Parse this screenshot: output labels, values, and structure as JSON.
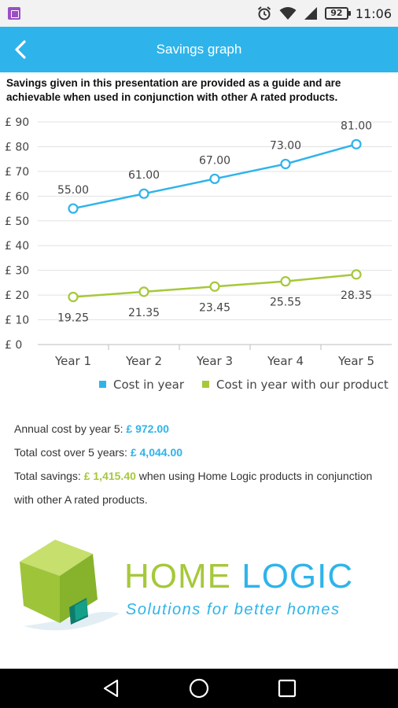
{
  "status_bar": {
    "time": "11:06",
    "battery": "92",
    "icons": [
      "app-notification-icon",
      "alarm-icon",
      "wifi-icon",
      "signal-icon",
      "battery-icon"
    ]
  },
  "app_bar": {
    "title": "Savings graph",
    "back_icon": "back-arrow-icon"
  },
  "disclaimer": "Savings given in this presentation are provided as a guide and are achievable when used in conjunction with other A rated products.",
  "chart_data": {
    "type": "line",
    "categories": [
      "Year 1",
      "Year 2",
      "Year 3",
      "Year 4",
      "Year 5"
    ],
    "series": [
      {
        "name": "Cost in year",
        "values": [
          55.0,
          61.0,
          67.0,
          73.0,
          81.0
        ],
        "labels": [
          "55.00",
          "61.00",
          "67.00",
          "73.00",
          "81.00"
        ],
        "color": "#2eb4ea"
      },
      {
        "name": "Cost in year with our product",
        "values": [
          19.25,
          21.35,
          23.45,
          25.55,
          28.35
        ],
        "labels": [
          "19.25",
          "21.35",
          "23.45",
          "25.55",
          "28.35"
        ],
        "color": "#a6c83a"
      }
    ],
    "y_ticks": [
      0,
      10,
      20,
      30,
      40,
      50,
      60,
      70,
      80,
      90
    ],
    "y_tick_labels": [
      "£ 0",
      "£ 10",
      "£ 20",
      "£ 30",
      "£ 40",
      "£ 50",
      "£ 60",
      "£ 70",
      "£ 80",
      "£ 90"
    ],
    "ylim": [
      0,
      90
    ],
    "grid": true,
    "legend": "bottom-right",
    "xlabel": "",
    "ylabel": ""
  },
  "summary": {
    "annual_label": "Annual cost by year 5: ",
    "annual_value": "£ 972.00",
    "total_label": "Total cost over 5 years: ",
    "total_value": "£ 4,044.00",
    "savings_label": "Total savings: ",
    "savings_value": "£ 1,415.40",
    "savings_suffix": " when using Home Logic products in conjunction with other A rated products."
  },
  "brand": {
    "name_home": "HOME",
    "name_logic": "LOGIC",
    "tagline": "Solutions for better homes",
    "green": "#a6c83a",
    "blue": "#2eb4ea"
  },
  "nav": {
    "icons": [
      "nav-back-icon",
      "nav-home-icon",
      "nav-recents-icon"
    ]
  }
}
